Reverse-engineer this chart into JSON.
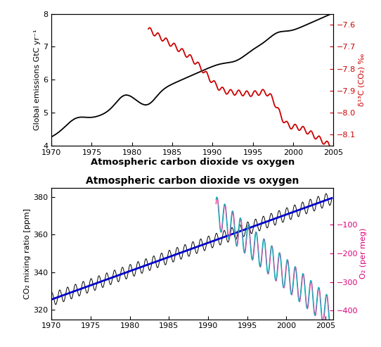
{
  "top_panel": {
    "ylabel_left": "Global emissions GtC yr⁻¹",
    "ylabel_right": "δ¹³C (CO₂) ‰",
    "xlim": [
      1970,
      2005
    ],
    "ylim_left": [
      4,
      8
    ],
    "ylim_right": [
      -8.15,
      -7.55
    ],
    "yticks_left": [
      4,
      5,
      6,
      7,
      8
    ],
    "yticks_right": [
      -8.1,
      -8.0,
      -7.9,
      -7.8,
      -7.7,
      -7.6
    ],
    "xticks": [
      1970,
      1975,
      1980,
      1985,
      1990,
      1995,
      2000,
      2005
    ],
    "line_color_black": "#000000",
    "line_color_red": "#cc0000"
  },
  "shared_xlabel": "Atmospheric carbon dioxide vs oxygen",
  "bottom_panel": {
    "title": "Atmospheric carbon dioxide vs oxygen",
    "ylabel_left": "CO₂ mixing ratio [ppm]",
    "ylabel_right": "O₂ (per meg)",
    "xlim": [
      1970,
      2006
    ],
    "ylim_left": [
      315,
      385
    ],
    "ylim_right": [
      -430,
      30
    ],
    "yticks_left": [
      320,
      340,
      360,
      380
    ],
    "yticks_right": [
      -400,
      -300,
      -200,
      -100
    ],
    "xticks": [
      1970,
      1975,
      1980,
      1985,
      1990,
      1995,
      2000,
      2005
    ],
    "co2_trend_color": "#0000cc",
    "co2_seasonal_color": "#000000",
    "o2_pink_color": "#ff1493",
    "o2_cyan_color": "#00bbbb"
  }
}
